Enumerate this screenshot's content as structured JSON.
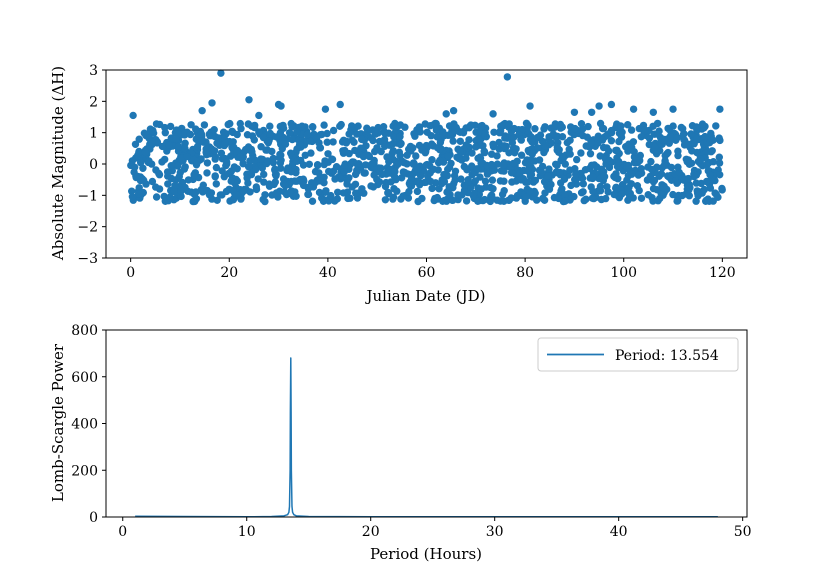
{
  "chart_data": [
    {
      "type": "scatter",
      "title": "",
      "xlabel": "Julian Date (JD)",
      "ylabel": "Absolute Magnitude (ΔH)",
      "xlim": [
        -5,
        125
      ],
      "ylim": [
        -3,
        3
      ],
      "xticks": [
        0,
        20,
        40,
        60,
        80,
        100,
        120
      ],
      "yticks": [
        -3,
        -2,
        -1,
        0,
        1,
        2,
        3
      ],
      "xtick_labels": [
        "0",
        "20",
        "40",
        "60",
        "80",
        "100",
        "120"
      ],
      "ytick_labels": [
        "−3",
        "−2",
        "−1",
        "0",
        "1",
        "2",
        "3"
      ],
      "grid": false,
      "color": "#1f77b4",
      "band": {
        "x_range": [
          0,
          120
        ],
        "y_range": [
          -1.2,
          1.3
        ],
        "point_count": 1500
      },
      "outliers": [
        {
          "x": 0.5,
          "y": 1.55
        },
        {
          "x": 14.5,
          "y": 1.7
        },
        {
          "x": 16.5,
          "y": 1.95
        },
        {
          "x": 18.3,
          "y": 2.9
        },
        {
          "x": 24.0,
          "y": 2.05
        },
        {
          "x": 26.0,
          "y": 1.55
        },
        {
          "x": 30.0,
          "y": 1.9
        },
        {
          "x": 30.5,
          "y": 1.85
        },
        {
          "x": 39.5,
          "y": 1.75
        },
        {
          "x": 42.5,
          "y": 1.9
        },
        {
          "x": 64.0,
          "y": 1.6
        },
        {
          "x": 65.5,
          "y": 1.7
        },
        {
          "x": 73.5,
          "y": 1.6
        },
        {
          "x": 76.4,
          "y": 2.78
        },
        {
          "x": 81.0,
          "y": 1.85
        },
        {
          "x": 90.0,
          "y": 1.65
        },
        {
          "x": 93.5,
          "y": 1.65
        },
        {
          "x": 95.0,
          "y": 1.85
        },
        {
          "x": 97.5,
          "y": 1.9
        },
        {
          "x": 102.0,
          "y": 1.75
        },
        {
          "x": 106.0,
          "y": 1.65
        },
        {
          "x": 110.0,
          "y": 1.75
        },
        {
          "x": 119.5,
          "y": 1.75
        }
      ]
    },
    {
      "type": "line",
      "title": "",
      "xlabel": "Period (Hours)",
      "ylabel": "Lomb-Scargle Power",
      "xlim": [
        -1.35,
        50.35
      ],
      "ylim": [
        0,
        800
      ],
      "xticks": [
        0,
        10,
        20,
        30,
        40,
        50
      ],
      "yticks": [
        0,
        200,
        400,
        600,
        800
      ],
      "xtick_labels": [
        "0",
        "10",
        "20",
        "30",
        "40",
        "50"
      ],
      "ytick_labels": [
        "0",
        "200",
        "400",
        "600",
        "800"
      ],
      "grid": false,
      "legend_position": "top-right",
      "color": "#1f77b4",
      "series": [
        {
          "name": "Period: 13.554",
          "x": [
            1.0,
            5.0,
            10.0,
            12.0,
            13.0,
            13.3,
            13.4,
            13.45,
            13.5,
            13.52,
            13.554,
            13.58,
            13.6,
            13.65,
            13.7,
            13.8,
            14.0,
            15.0,
            20.0,
            30.0,
            40.0,
            48.0
          ],
          "y": [
            3,
            2,
            1,
            2,
            5,
            10,
            20,
            45,
            200,
            450,
            680,
            450,
            200,
            45,
            20,
            10,
            5,
            2,
            1,
            1,
            1,
            1
          ]
        }
      ]
    }
  ]
}
